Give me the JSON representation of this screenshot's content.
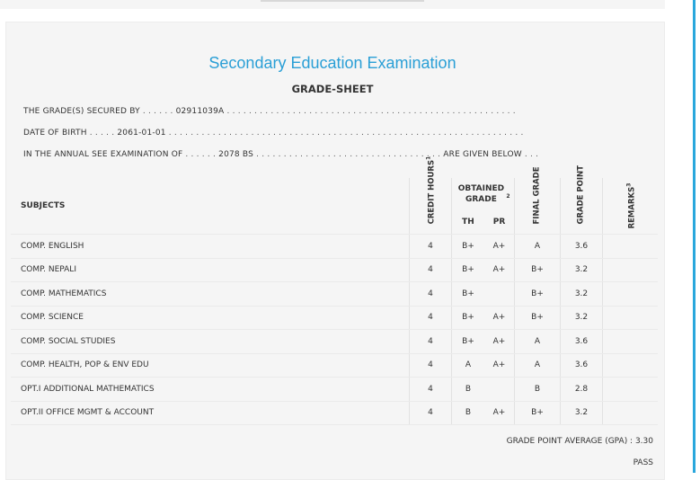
{
  "header": {
    "title": "Secondary Education Examination",
    "subtitle": "GRADE-SHEET"
  },
  "info": {
    "secured_label": "THE GRADE(S) SECURED BY",
    "symbol_no": "02911039A",
    "dob_label": "DATE OF BIRTH",
    "dob": "2061-01-01",
    "exam_label": "IN THE ANNUAL SEE EXAMINATION OF",
    "exam_year": "2078 BS",
    "given_below": "ARE GIVEN BELOW"
  },
  "table": {
    "headers": {
      "subjects": "SUBJECTS",
      "credit_hours": "CREDIT HOURS",
      "credit_sup": "1",
      "obtained_grade": "OBTAINED GRADE",
      "obtained_sup": "2",
      "th": "TH",
      "pr": "PR",
      "final_grade": "FINAL GRADE",
      "grade_point": "GRADE POINT",
      "remarks": "REMARKS",
      "remarks_sup": "3"
    },
    "rows": [
      {
        "subject": "COMP. ENGLISH",
        "credit": "4",
        "th": "B+",
        "pr": "A+",
        "final": "A",
        "gp": "3.6"
      },
      {
        "subject": "COMP. NEPALI",
        "credit": "4",
        "th": "B+",
        "pr": "A+",
        "final": "B+",
        "gp": "3.2"
      },
      {
        "subject": "COMP. MATHEMATICS",
        "credit": "4",
        "th": "B+",
        "pr": "",
        "final": "B+",
        "gp": "3.2"
      },
      {
        "subject": "COMP. SCIENCE",
        "credit": "4",
        "th": "B+",
        "pr": "A+",
        "final": "B+",
        "gp": "3.2"
      },
      {
        "subject": "COMP. SOCIAL STUDIES",
        "credit": "4",
        "th": "B+",
        "pr": "A+",
        "final": "A",
        "gp": "3.6"
      },
      {
        "subject": "COMP. HEALTH, POP & ENV EDU",
        "credit": "4",
        "th": "A",
        "pr": "A+",
        "final": "A",
        "gp": "3.6"
      },
      {
        "subject": "OPT.I ADDITIONAL MATHEMATICS",
        "credit": "4",
        "th": "B",
        "pr": "",
        "final": "B",
        "gp": "2.8"
      },
      {
        "subject": "OPT.II OFFICE MGMT & ACCOUNT",
        "credit": "4",
        "th": "B",
        "pr": "A+",
        "final": "B+",
        "gp": "3.2"
      }
    ]
  },
  "summary": {
    "gpa_label": "GRADE POINT AVERAGE (GPA) : 3.30",
    "result": "PASS"
  },
  "colors": {
    "title": "#2a9fd6",
    "accent_bar": "#2aa7dc",
    "panel_bg": "#f5f5f5"
  }
}
